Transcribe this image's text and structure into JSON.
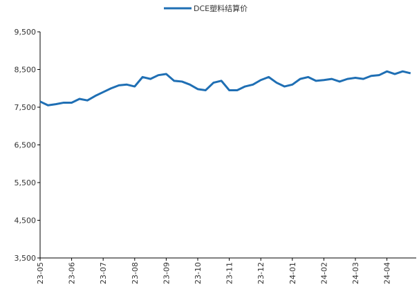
{
  "chart_data": {
    "type": "line",
    "categories": [
      "23-05",
      null,
      null,
      null,
      "23-06",
      null,
      null,
      null,
      "23-07",
      null,
      null,
      null,
      "23-08",
      null,
      null,
      null,
      "23-09",
      null,
      null,
      null,
      "23-10",
      null,
      null,
      null,
      "23-11",
      null,
      null,
      null,
      "23-12",
      null,
      null,
      null,
      "24-01",
      null,
      null,
      null,
      "24-02",
      null,
      null,
      null,
      "24-03",
      null,
      null,
      null,
      "24-04",
      null,
      null,
      null
    ],
    "series": [
      {
        "name": "DCE塑料结算价",
        "color": "#1f6fb4",
        "values": [
          7650,
          7550,
          7580,
          7620,
          7620,
          7720,
          7680,
          7800,
          7900,
          8000,
          8080,
          8100,
          8050,
          8300,
          8250,
          8350,
          8380,
          8200,
          8180,
          8100,
          7980,
          7950,
          8150,
          8200,
          7950,
          7950,
          8050,
          8100,
          8220,
          8300,
          8150,
          8050,
          8100,
          8250,
          8300,
          8200,
          8220,
          8250,
          8180,
          8250,
          8280,
          8250,
          8330,
          8350,
          8450,
          8380,
          8450,
          8400
        ]
      }
    ],
    "ylim": [
      3500,
      9500
    ],
    "yticks": [
      {
        "value": 3500,
        "label": "3,500"
      },
      {
        "value": 4500,
        "label": "4,500"
      },
      {
        "value": 5500,
        "label": "5,500"
      },
      {
        "value": 6500,
        "label": "6,500"
      },
      {
        "value": 7500,
        "label": "7,500"
      },
      {
        "value": 8500,
        "label": "8,500"
      },
      {
        "value": 9500,
        "label": "9,500"
      }
    ],
    "legend": "top"
  }
}
